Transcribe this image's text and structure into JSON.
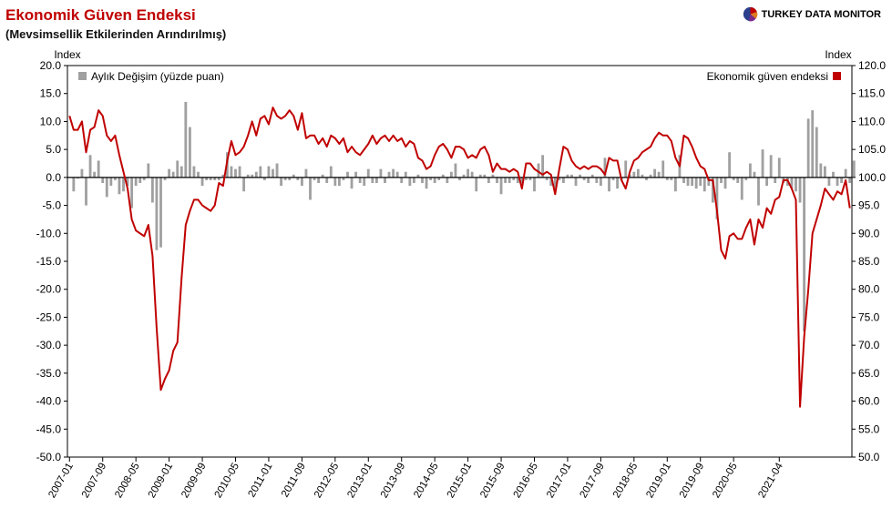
{
  "header": {
    "title": "Ekonomik Güven Endeksi",
    "subtitle": "(Mevsimsellik Etkilerinden Arındırılmış)",
    "brand": "TURKEY DATA MONITOR",
    "brand_logo_icon": "pie-logo-icon"
  },
  "colors": {
    "line": "#c00000",
    "bars": "#a0a0a0",
    "title": "#c00000"
  },
  "chart_data": {
    "type": "bar+line",
    "grid": false,
    "legend_placement": "top-left (bars), top-right (line)",
    "left_axis": {
      "label": "Index",
      "range": [
        -50,
        20
      ],
      "ticks": [
        "20.0",
        "15.0",
        "10.0",
        "5.0",
        "0.0",
        "-5.0",
        "-10.0",
        "-15.0",
        "-20.0",
        "-25.0",
        "-30.0",
        "-35.0",
        "-40.0",
        "-45.0",
        "-50.0"
      ]
    },
    "right_axis": {
      "label": "Index",
      "range": [
        50,
        120
      ],
      "ticks": [
        "120.0",
        "115.0",
        "110.0",
        "105.0",
        "100.0",
        "95.0",
        "90.0",
        "85.0",
        "80.0",
        "75.0",
        "70.0",
        "65.0",
        "60.0",
        "55.0",
        "50.0"
      ]
    },
    "x_start": "2007-01",
    "x_tick_labels": [
      "2007-01",
      "2007-09",
      "2008-05",
      "2009-01",
      "2009-09",
      "2010-05",
      "2011-01",
      "2011-09",
      "2012-05",
      "2013-01",
      "2013-09",
      "2014-05",
      "2015-01",
      "2015-09",
      "2016-05",
      "2017-01",
      "2017-09",
      "2018-05",
      "2019-01",
      "2019-09",
      "2020-05",
      "2021-04"
    ],
    "series": [
      {
        "name": "Aylık Değişim (yüzde puan)",
        "type": "bar",
        "axis": "left",
        "values": [
          0.0,
          -2.5,
          -0.2,
          1.5,
          -5.0,
          4.0,
          1.0,
          3.0,
          -1.0,
          -3.5,
          -1.5,
          -0.5,
          -3.0,
          -2.5,
          -1.5,
          -5.5,
          -1.5,
          -1.0,
          -0.5,
          2.5,
          -4.5,
          -13.0,
          -12.5,
          -0.5,
          1.5,
          1.0,
          3.0,
          2.0,
          13.5,
          9.0,
          2.0,
          1.0,
          -1.5,
          -0.5,
          -0.5,
          -0.5,
          -0.5,
          0.5,
          4.5,
          2.0,
          1.5,
          2.0,
          -2.5,
          0.5,
          0.5,
          1.0,
          2.0,
          -0.5,
          2.0,
          1.5,
          2.5,
          -1.5,
          -0.5,
          -0.5,
          0.5,
          -0.5,
          -1.5,
          1.5,
          -4.0,
          -0.5,
          -1.0,
          0.5,
          -1.0,
          2.0,
          -1.5,
          -1.5,
          -0.5,
          1.0,
          -2.0,
          1.0,
          -1.0,
          -1.5,
          1.5,
          -1.0,
          -1.0,
          1.5,
          -1.0,
          1.0,
          1.5,
          1.0,
          -1.0,
          1.0,
          -1.5,
          -1.0,
          0.5,
          -1.0,
          -2.0,
          -0.5,
          -1.0,
          -0.5,
          0.5,
          -1.0,
          1.0,
          2.5,
          -0.5,
          0.5,
          1.5,
          1.0,
          -2.5,
          0.5,
          0.5,
          -1.0,
          0.5,
          -1.0,
          -3.0,
          -1.0,
          -1.0,
          -0.5,
          -1.0,
          -1.0,
          -0.5,
          -0.5,
          -2.5,
          2.5,
          4.0,
          -0.5,
          -1.5,
          -2.0,
          -0.5,
          -1.0,
          0.5,
          0.5,
          -1.5,
          0.5,
          -0.5,
          -1.0,
          0.5,
          -1.0,
          -1.5,
          3.5,
          -2.5,
          -0.5,
          -2.0,
          -0.5,
          3.0,
          0.5,
          1.0,
          1.5,
          0.5,
          -0.5,
          0.5,
          1.5,
          1.0,
          3.0,
          -0.5,
          -0.5,
          -2.5,
          4.0,
          -1.0,
          -1.5,
          -1.5,
          -2.0,
          -1.5,
          -2.5,
          -1.5,
          -4.5,
          -7.5,
          -1.0,
          -2.0,
          4.5,
          -0.5,
          -1.0,
          -4.0,
          -0.5,
          2.5,
          1.0,
          -5.0,
          5.0,
          -1.5,
          4.0,
          -1.0,
          3.5,
          -1.0,
          -1.5,
          -2.0,
          -2.5,
          -4.5,
          -27.5,
          10.5,
          12.0,
          9.0,
          2.5,
          2.0,
          -1.5,
          1.0,
          -1.5,
          -1.0,
          1.5,
          -1.0,
          3.0
        ],
        "color": "#a0a0a0"
      },
      {
        "name": "Ekonomik güven endeksi",
        "type": "line",
        "axis": "right",
        "values": [
          111.0,
          108.5,
          108.5,
          110.0,
          104.5,
          108.5,
          109.0,
          112.0,
          111.0,
          107.5,
          106.5,
          107.5,
          104.0,
          101.0,
          98.0,
          92.5,
          90.5,
          90.0,
          89.5,
          91.5,
          86.0,
          73.0,
          62.0,
          64.0,
          65.5,
          69.0,
          70.5,
          82.0,
          91.5,
          94.0,
          96.0,
          96.0,
          95.0,
          94.5,
          94.0,
          95.0,
          99.0,
          98.5,
          103.0,
          106.5,
          104.0,
          104.5,
          105.5,
          107.5,
          110.0,
          107.5,
          110.5,
          111.0,
          109.5,
          112.5,
          111.0,
          110.5,
          111.0,
          112.0,
          111.0,
          108.5,
          111.5,
          107.0,
          107.5,
          107.5,
          106.0,
          107.0,
          105.5,
          107.5,
          107.0,
          106.0,
          107.0,
          104.5,
          105.5,
          104.5,
          104.0,
          105.0,
          106.0,
          107.5,
          106.0,
          107.0,
          107.5,
          106.5,
          107.5,
          106.5,
          107.0,
          105.5,
          106.5,
          106.0,
          103.5,
          103.0,
          101.5,
          102.0,
          104.0,
          105.5,
          106.0,
          105.0,
          103.5,
          105.5,
          105.5,
          105.0,
          103.5,
          104.0,
          103.5,
          105.0,
          105.5,
          104.0,
          101.0,
          102.5,
          101.5,
          101.5,
          101.0,
          101.5,
          101.0,
          98.0,
          102.5,
          102.5,
          101.5,
          101.0,
          100.5,
          101.0,
          100.5,
          97.0,
          101.5,
          105.5,
          105.0,
          103.0,
          102.0,
          101.5,
          102.0,
          101.5,
          102.0,
          102.0,
          101.5,
          100.5,
          103.5,
          103.0,
          103.0,
          99.5,
          98.0,
          101.0,
          103.0,
          103.5,
          104.5,
          105.0,
          105.5,
          107.0,
          108.0,
          107.5,
          107.5,
          106.5,
          103.5,
          102.0,
          107.5,
          107.0,
          105.5,
          103.5,
          102.0,
          101.5,
          99.5,
          99.5,
          94.0,
          87.0,
          85.5,
          89.5,
          90.0,
          89.0,
          89.0,
          91.0,
          92.5,
          88.0,
          92.5,
          91.0,
          94.5,
          93.5,
          96.0,
          96.5,
          99.5,
          99.5,
          98.0,
          96.0,
          59.0,
          71.5,
          80.0,
          90.0,
          92.5,
          95.0,
          98.0,
          97.0,
          96.0,
          97.5,
          97.0,
          99.5,
          94.5
        ],
        "color": "#c00000"
      }
    ]
  }
}
